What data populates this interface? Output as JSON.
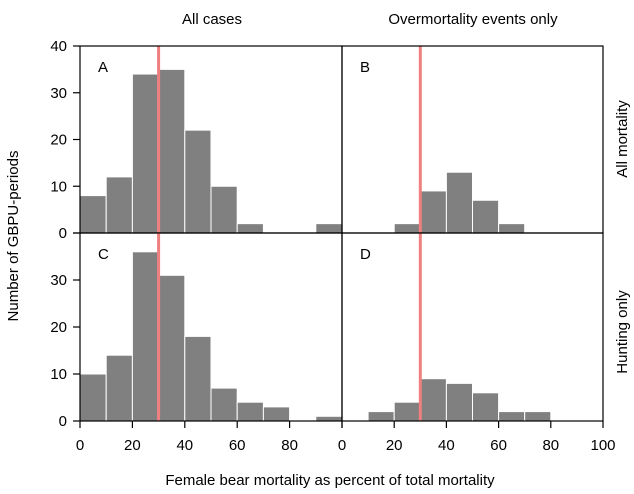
{
  "chart_data": {
    "type": "histogram-grid",
    "column_headers": [
      "All cases",
      "Overmortality events only"
    ],
    "row_headers": [
      "All mortality",
      "Hunting only"
    ],
    "xlabel": "Female bear mortality as percent of total mortality",
    "ylabel": "Number of GBPU-periods",
    "xlim": [
      0,
      100
    ],
    "ylim": [
      0,
      40
    ],
    "bin_width": 10,
    "x_ticks_left": [
      "0",
      "20",
      "40",
      "60",
      "80",
      ""
    ],
    "x_ticks_right": [
      "0",
      "20",
      "40",
      "60",
      "80",
      "100"
    ],
    "y_ticks": [
      "0",
      "10",
      "20",
      "30",
      "40"
    ],
    "y_ticks_bottom": [
      "0",
      "10",
      "20",
      "30",
      ""
    ],
    "vertical_line_x": 30,
    "vertical_line_color": "#f08080",
    "bar_color": "#808080",
    "panels": [
      {
        "label": "A",
        "row": 0,
        "col": 0,
        "bin_starts": [
          0,
          10,
          20,
          30,
          40,
          50,
          60,
          70,
          80,
          90
        ],
        "values": [
          8,
          12,
          34,
          35,
          22,
          10,
          2,
          0,
          0,
          2
        ]
      },
      {
        "label": "B",
        "row": 0,
        "col": 1,
        "bin_starts": [
          0,
          10,
          20,
          30,
          40,
          50,
          60,
          70,
          80,
          90
        ],
        "values": [
          0,
          0,
          2,
          9,
          13,
          7,
          2,
          0,
          0,
          0
        ]
      },
      {
        "label": "C",
        "row": 1,
        "col": 0,
        "bin_starts": [
          0,
          10,
          20,
          30,
          40,
          50,
          60,
          70,
          80,
          90
        ],
        "values": [
          10,
          14,
          36,
          31,
          18,
          7,
          4,
          3,
          0,
          1
        ]
      },
      {
        "label": "D",
        "row": 1,
        "col": 1,
        "bin_starts": [
          0,
          10,
          20,
          30,
          40,
          50,
          60,
          70,
          80,
          90
        ],
        "values": [
          0,
          2,
          4,
          9,
          8,
          6,
          2,
          2,
          0,
          0
        ]
      }
    ]
  }
}
